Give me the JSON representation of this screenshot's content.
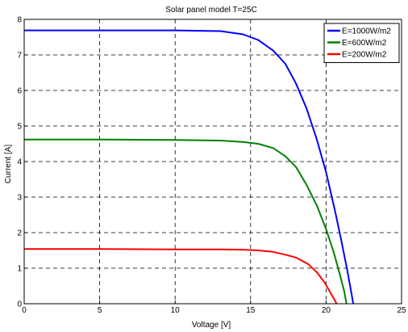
{
  "chart_data": {
    "type": "line",
    "title": "Solar panel model T=25C",
    "xlabel": "Voltage [V]",
    "ylabel": "Current [A]",
    "xlim": [
      0,
      25
    ],
    "ylim": [
      0,
      8
    ],
    "xticks": [
      0,
      5,
      10,
      15,
      20,
      25
    ],
    "yticks": [
      0,
      1,
      2,
      3,
      4,
      5,
      6,
      7,
      8
    ],
    "grid": true,
    "grid_style": "dashed",
    "legend_position": "top-right",
    "series": [
      {
        "name": "E=1000W/m2",
        "color": "#0000ff",
        "points": [
          [
            0,
            7.69
          ],
          [
            5,
            7.69
          ],
          [
            10,
            7.69
          ],
          [
            13,
            7.67
          ],
          [
            14.5,
            7.58
          ],
          [
            15.5,
            7.42
          ],
          [
            16.5,
            7.12
          ],
          [
            17.3,
            6.75
          ],
          [
            18,
            6.2
          ],
          [
            18.7,
            5.5
          ],
          [
            19.4,
            4.6
          ],
          [
            20,
            3.7
          ],
          [
            20.6,
            2.6
          ],
          [
            21,
            1.8
          ],
          [
            21.4,
            0.95
          ],
          [
            21.7,
            0.25
          ],
          [
            21.8,
            0
          ]
        ]
      },
      {
        "name": "E=600W/m2",
        "color": "#008000",
        "points": [
          [
            0,
            4.62
          ],
          [
            5,
            4.62
          ],
          [
            10,
            4.61
          ],
          [
            13,
            4.59
          ],
          [
            14.5,
            4.55
          ],
          [
            15.5,
            4.5
          ],
          [
            16.5,
            4.38
          ],
          [
            17.3,
            4.15
          ],
          [
            18,
            3.85
          ],
          [
            18.7,
            3.35
          ],
          [
            19.4,
            2.75
          ],
          [
            20,
            2.1
          ],
          [
            20.5,
            1.45
          ],
          [
            20.9,
            0.85
          ],
          [
            21.2,
            0.35
          ],
          [
            21.35,
            0
          ]
        ]
      },
      {
        "name": "E=200W/m2",
        "color": "#ff0000",
        "points": [
          [
            0,
            1.54
          ],
          [
            5,
            1.54
          ],
          [
            10,
            1.53
          ],
          [
            13,
            1.53
          ],
          [
            14.5,
            1.52
          ],
          [
            15.5,
            1.5
          ],
          [
            16.5,
            1.46
          ],
          [
            17.3,
            1.38
          ],
          [
            18,
            1.3
          ],
          [
            18.8,
            1.12
          ],
          [
            19.4,
            0.88
          ],
          [
            19.9,
            0.6
          ],
          [
            20.3,
            0.3
          ],
          [
            20.6,
            0.08
          ],
          [
            20.7,
            0
          ]
        ]
      }
    ]
  }
}
